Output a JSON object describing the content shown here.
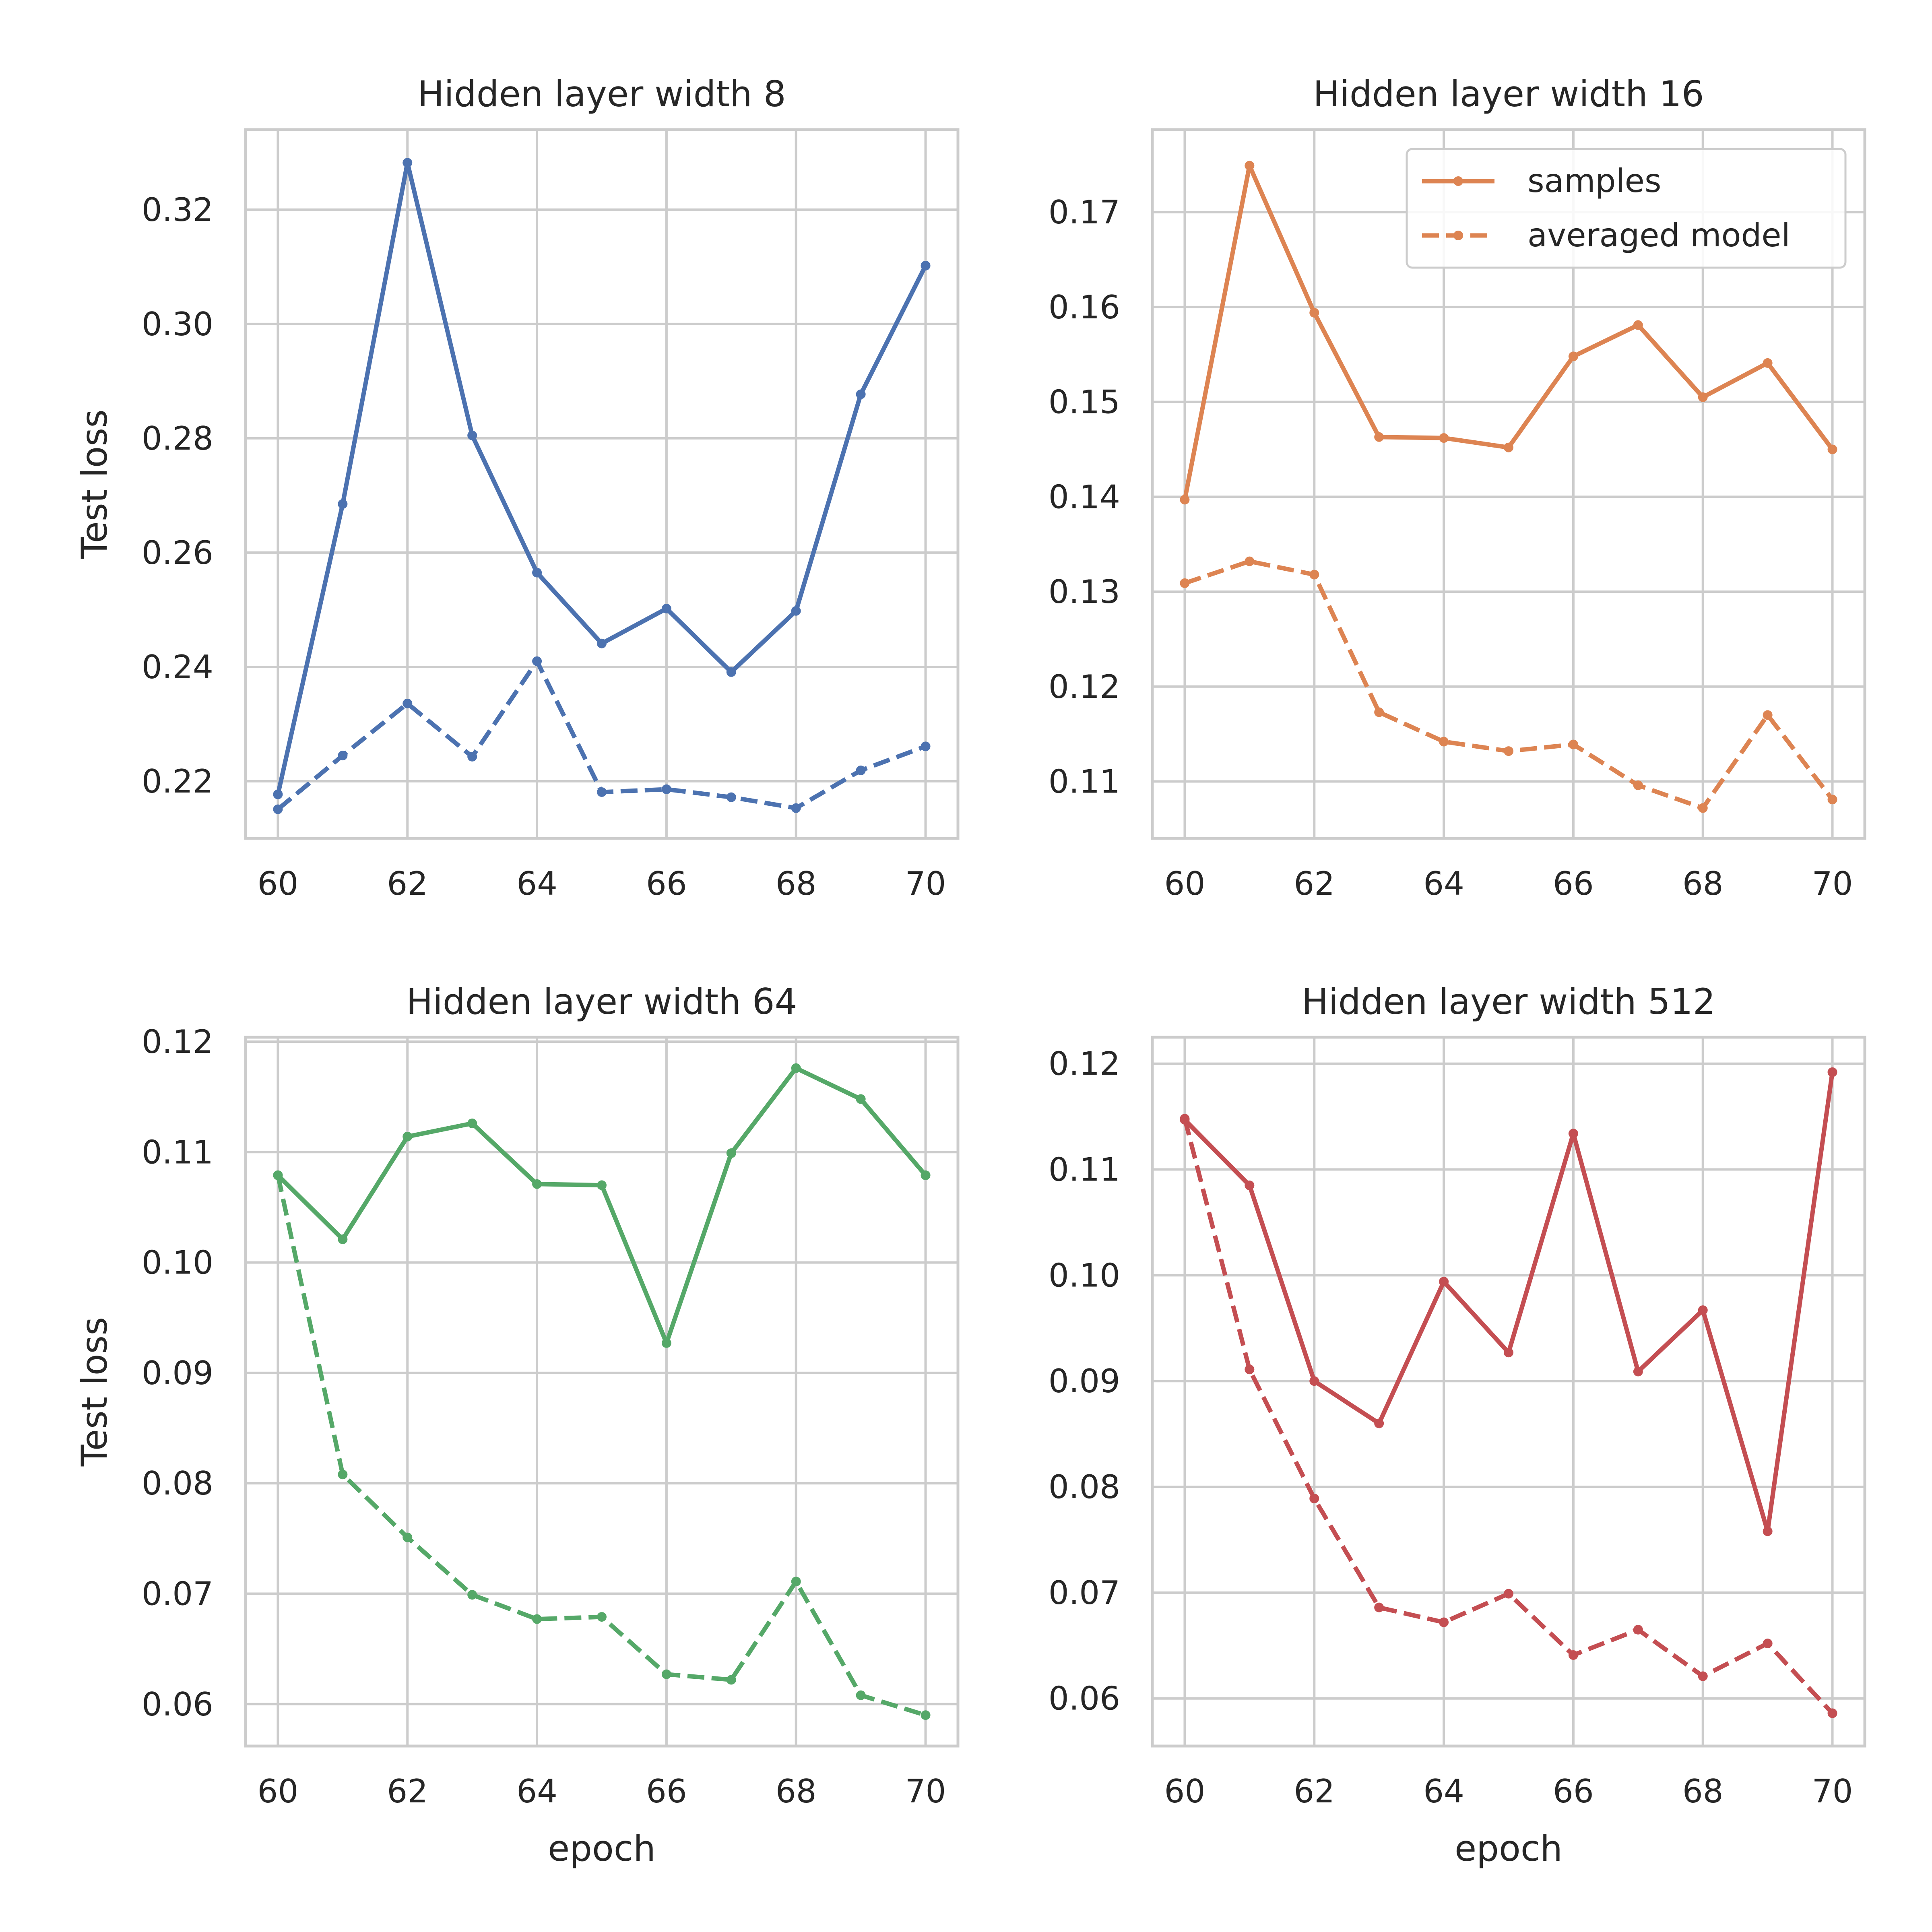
{
  "chart_data": [
    {
      "type": "line",
      "title": "Hidden layer width 8",
      "xlabel": "",
      "ylabel": "Test loss",
      "x": [
        60,
        61,
        62,
        63,
        64,
        65,
        66,
        67,
        68,
        69,
        70
      ],
      "xlim": [
        59.5,
        70.5
      ],
      "ylim": [
        0.21,
        0.334
      ],
      "xticks": [
        60,
        62,
        64,
        66,
        68,
        70
      ],
      "yticks": [
        0.22,
        0.24,
        0.26,
        0.28,
        0.3,
        0.32
      ],
      "ytick_labels": [
        "0.22",
        "0.24",
        "0.26",
        "0.28",
        "0.30",
        "0.32"
      ],
      "color": "#4c72b0",
      "grid": true,
      "series": [
        {
          "style": "solid",
          "values": [
            0.2177,
            0.2685,
            0.3282,
            0.2805,
            0.2565,
            0.2441,
            0.2502,
            0.2391,
            0.2498,
            0.2877,
            0.3102
          ]
        },
        {
          "style": "dashed",
          "values": [
            0.2151,
            0.2245,
            0.2336,
            0.2243,
            0.241,
            0.2181,
            0.2186,
            0.2172,
            0.2153,
            0.2219,
            0.2261
          ]
        }
      ]
    },
    {
      "type": "line",
      "title": "Hidden layer width 16",
      "xlabel": "",
      "ylabel": "",
      "x": [
        60,
        61,
        62,
        63,
        64,
        65,
        66,
        67,
        68,
        69,
        70
      ],
      "xlim": [
        59.5,
        70.5
      ],
      "ylim": [
        0.104,
        0.1787
      ],
      "xticks": [
        60,
        62,
        64,
        66,
        68,
        70
      ],
      "yticks": [
        0.11,
        0.12,
        0.13,
        0.14,
        0.15,
        0.16,
        0.17
      ],
      "ytick_labels": [
        "0.11",
        "0.12",
        "0.13",
        "0.14",
        "0.15",
        "0.16",
        "0.17"
      ],
      "color": "#dd8452",
      "grid": true,
      "legend": {
        "position": "upper-right",
        "entries": [
          "samples",
          "averaged model"
        ]
      },
      "series": [
        {
          "name": "samples",
          "style": "solid",
          "values": [
            0.1397,
            0.1749,
            0.1594,
            0.1463,
            0.1462,
            0.1452,
            0.1548,
            0.1581,
            0.1505,
            0.1541,
            0.145
          ]
        },
        {
          "name": "averaged model",
          "style": "dashed",
          "values": [
            0.1309,
            0.1332,
            0.1318,
            0.1173,
            0.1142,
            0.1132,
            0.1139,
            0.1096,
            0.1072,
            0.117,
            0.1081
          ]
        }
      ]
    },
    {
      "type": "line",
      "title": "Hidden layer width 64",
      "xlabel": "epoch",
      "ylabel": "Test loss",
      "x": [
        60,
        61,
        62,
        63,
        64,
        65,
        66,
        67,
        68,
        69,
        70
      ],
      "xlim": [
        59.5,
        70.5
      ],
      "ylim": [
        0.0562,
        0.1204
      ],
      "xticks": [
        60,
        62,
        64,
        66,
        68,
        70
      ],
      "yticks": [
        0.06,
        0.07,
        0.08,
        0.09,
        0.1,
        0.11,
        0.12
      ],
      "ytick_labels": [
        "0.06",
        "0.07",
        "0.08",
        "0.09",
        "0.10",
        "0.11",
        "0.12"
      ],
      "color": "#55a868",
      "grid": true,
      "series": [
        {
          "style": "solid",
          "values": [
            0.1079,
            0.1021,
            0.1114,
            0.1126,
            0.1071,
            0.107,
            0.0927,
            0.1099,
            0.1176,
            0.1148,
            0.1079
          ]
        },
        {
          "style": "dashed",
          "values": [
            0.1079,
            0.0808,
            0.0751,
            0.0699,
            0.0677,
            0.0679,
            0.0627,
            0.0622,
            0.0711,
            0.0608,
            0.059
          ]
        }
      ]
    },
    {
      "type": "line",
      "title": "Hidden layer width 512",
      "xlabel": "epoch",
      "ylabel": "",
      "x": [
        60,
        61,
        62,
        63,
        64,
        65,
        66,
        67,
        68,
        69,
        70
      ],
      "xlim": [
        59.5,
        70.5
      ],
      "ylim": [
        0.0555,
        0.1225
      ],
      "xticks": [
        60,
        62,
        64,
        66,
        68,
        70
      ],
      "yticks": [
        0.06,
        0.07,
        0.08,
        0.09,
        0.1,
        0.11,
        0.12
      ],
      "ytick_labels": [
        "0.06",
        "0.07",
        "0.08",
        "0.09",
        "0.10",
        "0.11",
        "0.12"
      ],
      "color": "#c44e52",
      "grid": true,
      "series": [
        {
          "style": "solid",
          "values": [
            0.1147,
            0.1085,
            0.09,
            0.086,
            0.0994,
            0.0927,
            0.1134,
            0.0909,
            0.0967,
            0.0758,
            0.1192
          ]
        },
        {
          "style": "dashed",
          "values": [
            0.1148,
            0.0911,
            0.0789,
            0.0686,
            0.0672,
            0.0699,
            0.0641,
            0.0665,
            0.0621,
            0.0652,
            0.0586
          ]
        }
      ]
    }
  ]
}
